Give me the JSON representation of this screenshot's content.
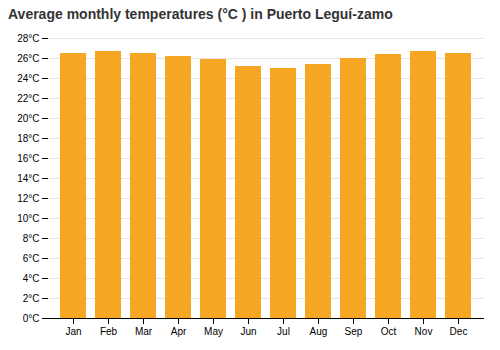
{
  "chart_data": {
    "type": "bar",
    "title": "Average monthly temperatures (°C ) in Puerto Leguí-zamo",
    "categories": [
      "Jan",
      "Feb",
      "Mar",
      "Apr",
      "May",
      "Jun",
      "Jul",
      "Aug",
      "Sep",
      "Oct",
      "Nov",
      "Dec"
    ],
    "values": [
      26.5,
      26.7,
      26.5,
      26.2,
      25.9,
      25.2,
      25.0,
      25.4,
      26.0,
      26.4,
      26.7,
      26.5
    ],
    "color": "#F5A623",
    "ylim": [
      0,
      28
    ],
    "yticks": [
      {
        "value": 0,
        "label": "0°C"
      },
      {
        "value": 2,
        "label": "2°C"
      },
      {
        "value": 4,
        "label": "4°C"
      },
      {
        "value": 6,
        "label": "6°C"
      },
      {
        "value": 8,
        "label": "8°C"
      },
      {
        "value": 10,
        "label": "10°C"
      },
      {
        "value": 12,
        "label": "12°C"
      },
      {
        "value": 14,
        "label": "14°C"
      },
      {
        "value": 16,
        "label": "16°C"
      },
      {
        "value": 18,
        "label": "18°C"
      },
      {
        "value": 20,
        "label": "20°C"
      },
      {
        "value": 22,
        "label": "22°C"
      },
      {
        "value": 24,
        "label": "24°C"
      },
      {
        "value": 26,
        "label": "26°C"
      },
      {
        "value": 28,
        "label": "28°C"
      }
    ],
    "grid": true
  }
}
